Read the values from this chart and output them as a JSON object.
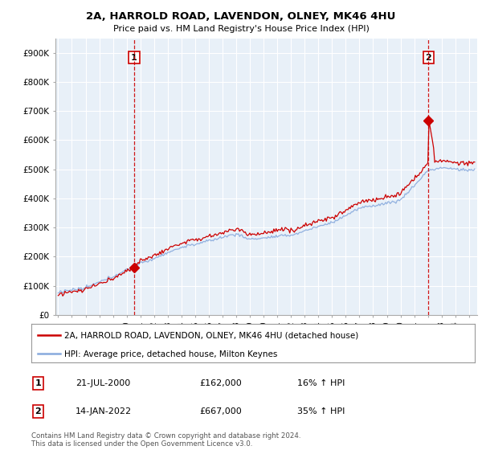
{
  "title": "2A, HARROLD ROAD, LAVENDON, OLNEY, MK46 4HU",
  "subtitle": "Price paid vs. HM Land Registry's House Price Index (HPI)",
  "ylim": [
    0,
    950000
  ],
  "yticks": [
    0,
    100000,
    200000,
    300000,
    400000,
    500000,
    600000,
    700000,
    800000,
    900000
  ],
  "ytick_labels": [
    "£0",
    "£100K",
    "£200K",
    "£300K",
    "£400K",
    "£500K",
    "£600K",
    "£700K",
    "£800K",
    "£900K"
  ],
  "line1_color": "#cc0000",
  "line2_color": "#88aadd",
  "vline_color": "#cc0000",
  "transaction1_date": 2000.55,
  "transaction1_price": 162000,
  "transaction2_date": 2022.04,
  "transaction2_price": 667000,
  "legend_line1": "2A, HARROLD ROAD, LAVENDON, OLNEY, MK46 4HU (detached house)",
  "legend_line2": "HPI: Average price, detached house, Milton Keynes",
  "annot1_date": "21-JUL-2000",
  "annot1_price": "£162,000",
  "annot1_hpi": "16% ↑ HPI",
  "annot2_date": "14-JAN-2022",
  "annot2_price": "£667,000",
  "annot2_hpi": "35% ↑ HPI",
  "footer": "Contains HM Land Registry data © Crown copyright and database right 2024.\nThis data is licensed under the Open Government Licence v3.0.",
  "bg_color": "#ffffff",
  "plot_bg_color": "#e8f0f8",
  "grid_color": "#ffffff"
}
